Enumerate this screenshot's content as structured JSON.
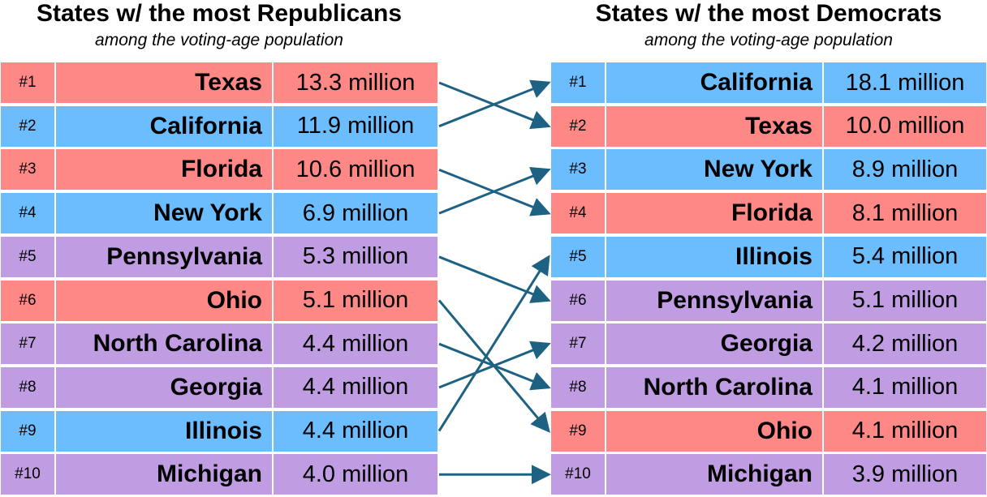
{
  "left": {
    "title": "States w/ the most Republicans",
    "subtitle": "among the voting-age population",
    "rows": [
      {
        "rank": "#1",
        "state": "Texas",
        "value": "13.3 million",
        "color": "#fe8886"
      },
      {
        "rank": "#2",
        "state": "California",
        "value": "11.9 million",
        "color": "#6bbdfe"
      },
      {
        "rank": "#3",
        "state": "Florida",
        "value": "10.6 million",
        "color": "#fe8886"
      },
      {
        "rank": "#4",
        "state": "New York",
        "value": "6.9 million",
        "color": "#6bbdfe"
      },
      {
        "rank": "#5",
        "state": "Pennsylvania",
        "value": "5.3 million",
        "color": "#c09ce2"
      },
      {
        "rank": "#6",
        "state": "Ohio",
        "value": "5.1 million",
        "color": "#fe8886"
      },
      {
        "rank": "#7",
        "state": "North Carolina",
        "value": "4.4 million",
        "color": "#c09ce2"
      },
      {
        "rank": "#8",
        "state": "Georgia",
        "value": "4.4 million",
        "color": "#c09ce2"
      },
      {
        "rank": "#9",
        "state": "Illinois",
        "value": "4.4 million",
        "color": "#6bbdfe"
      },
      {
        "rank": "#10",
        "state": "Michigan",
        "value": "4.0 million",
        "color": "#c09ce2"
      }
    ]
  },
  "right": {
    "title": "States w/ the most Democrats",
    "subtitle": "among the voting-age population",
    "rows": [
      {
        "rank": "#1",
        "state": "California",
        "value": "18.1 million",
        "color": "#6bbdfe"
      },
      {
        "rank": "#2",
        "state": "Texas",
        "value": "10.0 million",
        "color": "#fe8886"
      },
      {
        "rank": "#3",
        "state": "New York",
        "value": "8.9 million",
        "color": "#6bbdfe"
      },
      {
        "rank": "#4",
        "state": "Florida",
        "value": "8.1 million",
        "color": "#fe8886"
      },
      {
        "rank": "#5",
        "state": "Illinois",
        "value": "5.4 million",
        "color": "#6bbdfe"
      },
      {
        "rank": "#6",
        "state": "Pennsylvania",
        "value": "5.1 million",
        "color": "#c09ce2"
      },
      {
        "rank": "#7",
        "state": "Georgia",
        "value": "4.2 million",
        "color": "#c09ce2"
      },
      {
        "rank": "#8",
        "state": "North Carolina",
        "value": "4.1 million",
        "color": "#c09ce2"
      },
      {
        "rank": "#9",
        "state": "Ohio",
        "value": "4.1 million",
        "color": "#fe8886"
      },
      {
        "rank": "#10",
        "state": "Michigan",
        "value": "3.9 million",
        "color": "#c09ce2"
      }
    ]
  },
  "connections": [
    {
      "from_rank": 1,
      "to_rank": 2
    },
    {
      "from_rank": 2,
      "to_rank": 1
    },
    {
      "from_rank": 3,
      "to_rank": 4
    },
    {
      "from_rank": 4,
      "to_rank": 3
    },
    {
      "from_rank": 5,
      "to_rank": 6
    },
    {
      "from_rank": 6,
      "to_rank": 9
    },
    {
      "from_rank": 7,
      "to_rank": 8
    },
    {
      "from_rank": 8,
      "to_rank": 7
    },
    {
      "from_rank": 9,
      "to_rank": 5
    },
    {
      "from_rank": 10,
      "to_rank": 10
    }
  ],
  "arrow_color": "#1e6283"
}
